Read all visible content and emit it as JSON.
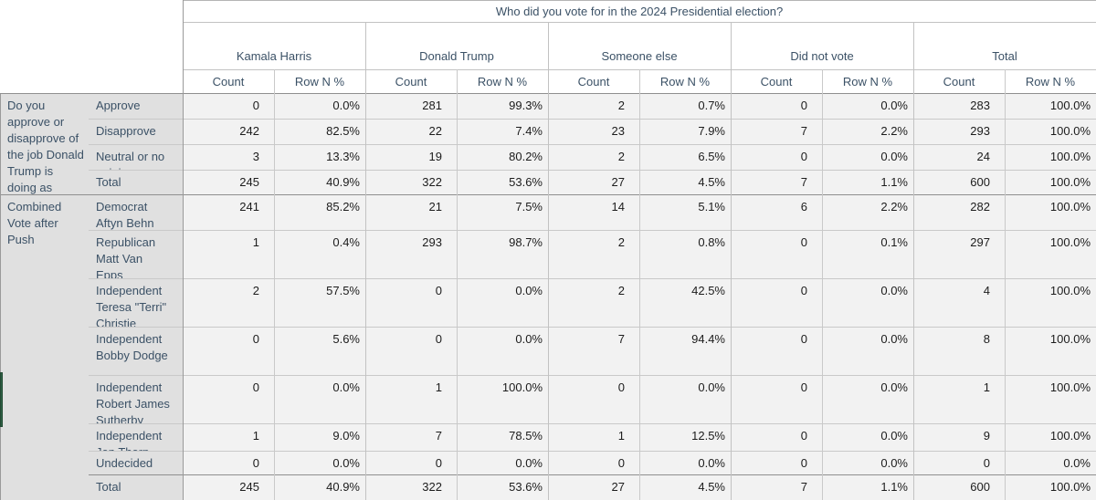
{
  "chart_data": {
    "type": "table",
    "title": "Who did you vote for in the 2024 Presidential election?",
    "column_groups": [
      "Kamala Harris",
      "Donald Trump",
      "Someone else",
      "Did not vote",
      "Total"
    ],
    "measures_per_group": [
      "Count",
      "Row N %"
    ],
    "row_sections": [
      {
        "label": "Do you approve or disapprove of the job Donald Trump is doing as",
        "rows": [
          {
            "label": "Approve",
            "cells": [
              "0",
              "0.0%",
              "281",
              "99.3%",
              "2",
              "0.7%",
              "0",
              "0.0%",
              "283",
              "100.0%"
            ]
          },
          {
            "label": "Disapprove",
            "cells": [
              "242",
              "82.5%",
              "22",
              "7.4%",
              "23",
              "7.9%",
              "7",
              "2.2%",
              "293",
              "100.0%"
            ]
          },
          {
            "label": "Neutral or no opinion",
            "cells": [
              "3",
              "13.3%",
              "19",
              "80.2%",
              "2",
              "6.5%",
              "0",
              "0.0%",
              "24",
              "100.0%"
            ]
          },
          {
            "label": "Total",
            "cells": [
              "245",
              "40.9%",
              "322",
              "53.6%",
              "27",
              "4.5%",
              "7",
              "1.1%",
              "600",
              "100.0%"
            ]
          }
        ]
      },
      {
        "label": "Combined Vote after Push",
        "rows": [
          {
            "label": "Democrat Aftyn Behn",
            "cells": [
              "241",
              "85.2%",
              "21",
              "7.5%",
              "14",
              "5.1%",
              "6",
              "2.2%",
              "282",
              "100.0%"
            ]
          },
          {
            "label": "Republican Matt Van Epps",
            "cells": [
              "1",
              "0.4%",
              "293",
              "98.7%",
              "2",
              "0.8%",
              "0",
              "0.1%",
              "297",
              "100.0%"
            ]
          },
          {
            "label": "Independent Teresa \"Terri\" Christie",
            "cells": [
              "2",
              "57.5%",
              "0",
              "0.0%",
              "2",
              "42.5%",
              "0",
              "0.0%",
              "4",
              "100.0%"
            ]
          },
          {
            "label": "Independent Bobby Dodge",
            "cells": [
              "0",
              "5.6%",
              "0",
              "0.0%",
              "7",
              "94.4%",
              "0",
              "0.0%",
              "8",
              "100.0%"
            ]
          },
          {
            "label": "Independent Robert James Sutherby",
            "cells": [
              "0",
              "0.0%",
              "1",
              "100.0%",
              "0",
              "0.0%",
              "0",
              "0.0%",
              "1",
              "100.0%"
            ]
          },
          {
            "label": "Independent Jon Thorp",
            "cells": [
              "1",
              "9.0%",
              "7",
              "78.5%",
              "1",
              "12.5%",
              "0",
              "0.0%",
              "9",
              "100.0%"
            ]
          },
          {
            "label": "Undecided",
            "cells": [
              "0",
              "0.0%",
              "0",
              "0.0%",
              "0",
              "0.0%",
              "0",
              "0.0%",
              "0",
              "0.0%"
            ]
          },
          {
            "label": "Total",
            "cells": [
              "245",
              "40.9%",
              "322",
              "53.6%",
              "27",
              "4.5%",
              "7",
              "1.1%",
              "600",
              "100.0%"
            ]
          }
        ]
      }
    ],
    "layout_hints": {
      "grid": true,
      "counts_right_aligned": true,
      "percents_right_aligned": true
    }
  },
  "colors": {
    "label_bg": "#e0e0e0",
    "data_bg": "#f2f2f2",
    "header_text": "#3b5166",
    "value_text": "#1c1c1c",
    "grid_light": "#c9c9c9",
    "grid_dark": "#8f8f8f",
    "marker_green": "#2e6147"
  }
}
